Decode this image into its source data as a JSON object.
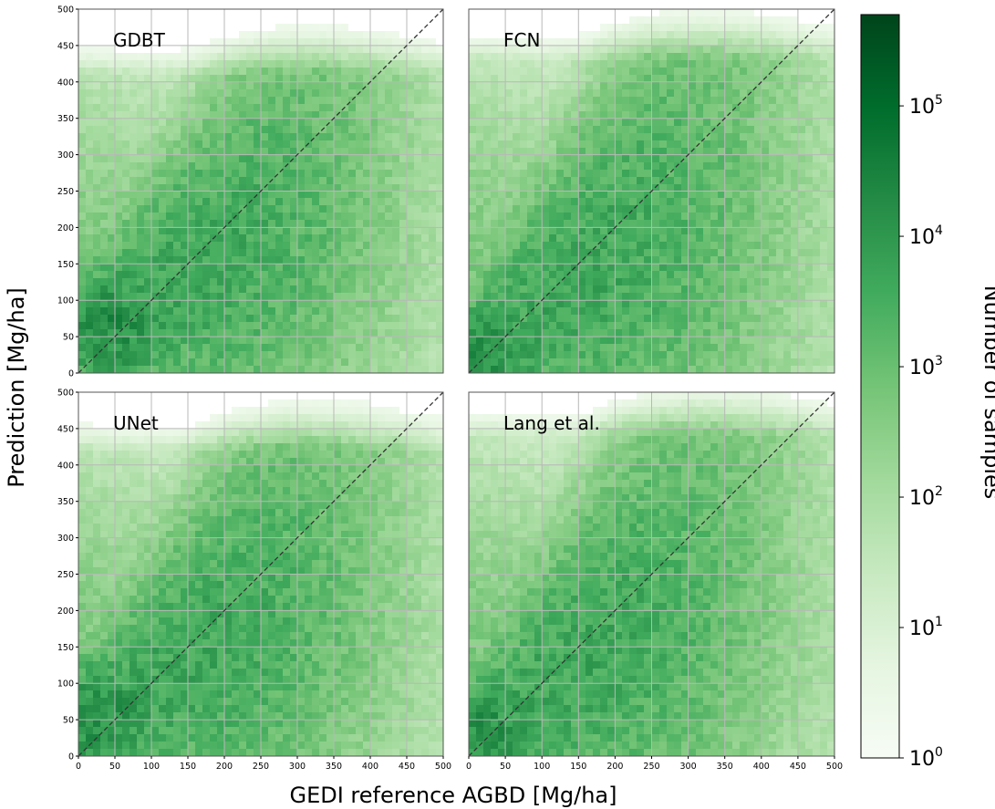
{
  "chart_data": [
    {
      "type": "heatmap",
      "panel": "GDBT",
      "xlim": [
        0,
        500
      ],
      "ylim": [
        0,
        500
      ],
      "xticks": [
        0,
        50,
        100,
        150,
        200,
        250,
        300,
        350,
        400,
        450,
        500
      ],
      "yticks": [
        0,
        50,
        100,
        150,
        200,
        250,
        300,
        350,
        400,
        450,
        500
      ],
      "grid": true,
      "reference_line": {
        "x": [
          0,
          500
        ],
        "y": [
          0,
          500
        ],
        "style": "dashed"
      },
      "density_model": {
        "x_mode": 40,
        "y_mode": 60,
        "x_mean": 150,
        "x_sd": 120,
        "slope": 0.55,
        "intercept": 55,
        "spread_base": 35,
        "spread_growth": 0.35,
        "y_max": 410
      }
    },
    {
      "type": "heatmap",
      "panel": "FCN",
      "xlim": [
        0,
        500
      ],
      "ylim": [
        0,
        500
      ],
      "xticks": [
        0,
        50,
        100,
        150,
        200,
        250,
        300,
        350,
        400,
        450,
        500
      ],
      "yticks": [
        0,
        50,
        100,
        150,
        200,
        250,
        300,
        350,
        400,
        450,
        500
      ],
      "grid": true,
      "reference_line": {
        "x": [
          0,
          500
        ],
        "y": [
          0,
          500
        ],
        "style": "dashed"
      },
      "density_model": {
        "x_mode": 15,
        "y_mode": 15,
        "x_mean": 150,
        "x_sd": 120,
        "slope": 0.6,
        "intercept": 40,
        "spread_base": 35,
        "spread_growth": 0.4,
        "y_max": 430
      }
    },
    {
      "type": "heatmap",
      "panel": "UNet",
      "xlim": [
        0,
        500
      ],
      "ylim": [
        0,
        500
      ],
      "xticks": [
        0,
        50,
        100,
        150,
        200,
        250,
        300,
        350,
        400,
        450,
        500
      ],
      "yticks": [
        0,
        50,
        100,
        150,
        200,
        250,
        300,
        350,
        400,
        450,
        500
      ],
      "grid": true,
      "reference_line": {
        "x": [
          0,
          500
        ],
        "y": [
          0,
          500
        ],
        "style": "dashed"
      },
      "density_model": {
        "x_mode": 20,
        "y_mode": 50,
        "x_mean": 150,
        "x_sd": 120,
        "slope": 0.6,
        "intercept": 45,
        "spread_base": 35,
        "spread_growth": 0.38,
        "y_max": 420
      }
    },
    {
      "type": "heatmap",
      "panel": "Lang et al.",
      "xlim": [
        0,
        500
      ],
      "ylim": [
        0,
        500
      ],
      "xticks": [
        0,
        50,
        100,
        150,
        200,
        250,
        300,
        350,
        400,
        450,
        500
      ],
      "yticks": [
        0,
        50,
        100,
        150,
        200,
        250,
        300,
        350,
        400,
        450,
        500
      ],
      "grid": true,
      "reference_line": {
        "x": [
          0,
          500
        ],
        "y": [
          0,
          500
        ],
        "style": "dashed"
      },
      "density_model": {
        "x_mode": 15,
        "y_mode": 20,
        "x_mean": 150,
        "x_sd": 120,
        "slope": 0.62,
        "intercept": 35,
        "spread_base": 35,
        "spread_growth": 0.4,
        "y_max": 440
      }
    }
  ],
  "labels": {
    "xlabel": "GEDI reference AGBD [Mg/ha]",
    "ylabel": "Prediction [Mg/ha]",
    "colorbar_label": "Number of samples"
  },
  "colorbar": {
    "scale": "log",
    "ticks": [
      {
        "base": "10",
        "exp": "0",
        "value": 1
      },
      {
        "base": "10",
        "exp": "1",
        "value": 10
      },
      {
        "base": "10",
        "exp": "2",
        "value": 100
      },
      {
        "base": "10",
        "exp": "3",
        "value": 1000
      },
      {
        "base": "10",
        "exp": "4",
        "value": 10000
      },
      {
        "base": "10",
        "exp": "5",
        "value": 100000
      }
    ],
    "colormap": [
      "#f7fcf5",
      "#e5f5e0",
      "#c7e9c0",
      "#a1d99b",
      "#74c476",
      "#41ab5d",
      "#238b45",
      "#006d2c",
      "#00441b"
    ]
  }
}
